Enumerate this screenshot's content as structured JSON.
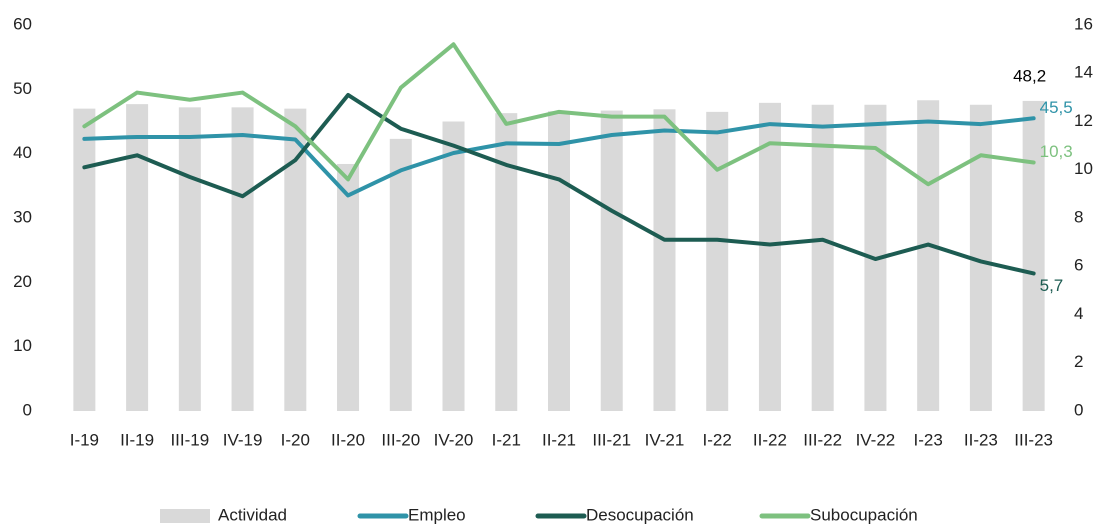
{
  "chart_data": {
    "type": "bar-line",
    "categories": [
      "I-19",
      "II-19",
      "III-19",
      "IV-19",
      "I-20",
      "II-20",
      "III-20",
      "IV-20",
      "I-21",
      "II-21",
      "III-21",
      "IV-21",
      "I-22",
      "II-22",
      "III-22",
      "IV-22",
      "I-23",
      "II-23",
      "III-23"
    ],
    "series": [
      {
        "name": "Actividad",
        "type": "bar",
        "axis": "y",
        "color": "#d9d9d9",
        "values": [
          47,
          47.7,
          47.2,
          47.2,
          47,
          38.4,
          42.3,
          45,
          46.3,
          46.6,
          46.7,
          46.9,
          46.5,
          47.9,
          47.6,
          47.6,
          48.3,
          47.6,
          48.2
        ],
        "value_labels": [
          null,
          null,
          null,
          null,
          null,
          null,
          null,
          null,
          null,
          null,
          null,
          null,
          null,
          null,
          null,
          null,
          null,
          null,
          "48,2"
        ],
        "label_color": "#000000"
      },
      {
        "name": "Empleo",
        "type": "line",
        "axis": "y",
        "color": "#2f93a8",
        "values": [
          42.3,
          42.6,
          42.6,
          42.9,
          42.2,
          33.5,
          37.4,
          40.1,
          41.6,
          41.5,
          42.9,
          43.6,
          43.3,
          44.6,
          44.2,
          44.6,
          45,
          44.6,
          45.5
        ],
        "value_labels": [
          null,
          null,
          null,
          null,
          null,
          null,
          null,
          null,
          null,
          null,
          null,
          null,
          null,
          null,
          null,
          null,
          null,
          null,
          "45,5"
        ]
      },
      {
        "name": "Desocupación",
        "type": "line",
        "axis": "y2",
        "color": "#1d5c52",
        "values": [
          10.1,
          10.6,
          9.7,
          8.9,
          10.4,
          13.1,
          11.7,
          11,
          10.2,
          9.6,
          8.3,
          7.1,
          7.1,
          6.9,
          7.1,
          6.3,
          6.9,
          6.2,
          5.7
        ],
        "value_labels": [
          null,
          null,
          null,
          null,
          null,
          null,
          null,
          null,
          null,
          null,
          null,
          null,
          null,
          null,
          null,
          null,
          null,
          null,
          "5,7"
        ]
      },
      {
        "name": "Subocupación",
        "type": "line",
        "axis": "y2",
        "color": "#7dc17f",
        "values": [
          11.8,
          13.2,
          12.9,
          13.2,
          11.8,
          9.6,
          13.4,
          15.2,
          11.9,
          12.4,
          12.2,
          12.2,
          10,
          11.1,
          11,
          10.9,
          9.4,
          10.6,
          10.3
        ],
        "value_labels": [
          null,
          null,
          null,
          null,
          null,
          null,
          null,
          null,
          null,
          null,
          null,
          null,
          null,
          null,
          null,
          null,
          null,
          null,
          "10,3"
        ]
      }
    ],
    "ylim": [
      0,
      60
    ],
    "yticks": [
      0,
      10,
      20,
      30,
      40,
      50,
      60
    ],
    "y2lim": [
      0,
      16
    ],
    "y2ticks": [
      0,
      2,
      4,
      6,
      8,
      10,
      12,
      14,
      16
    ],
    "grid": false,
    "legend": "bottom"
  }
}
